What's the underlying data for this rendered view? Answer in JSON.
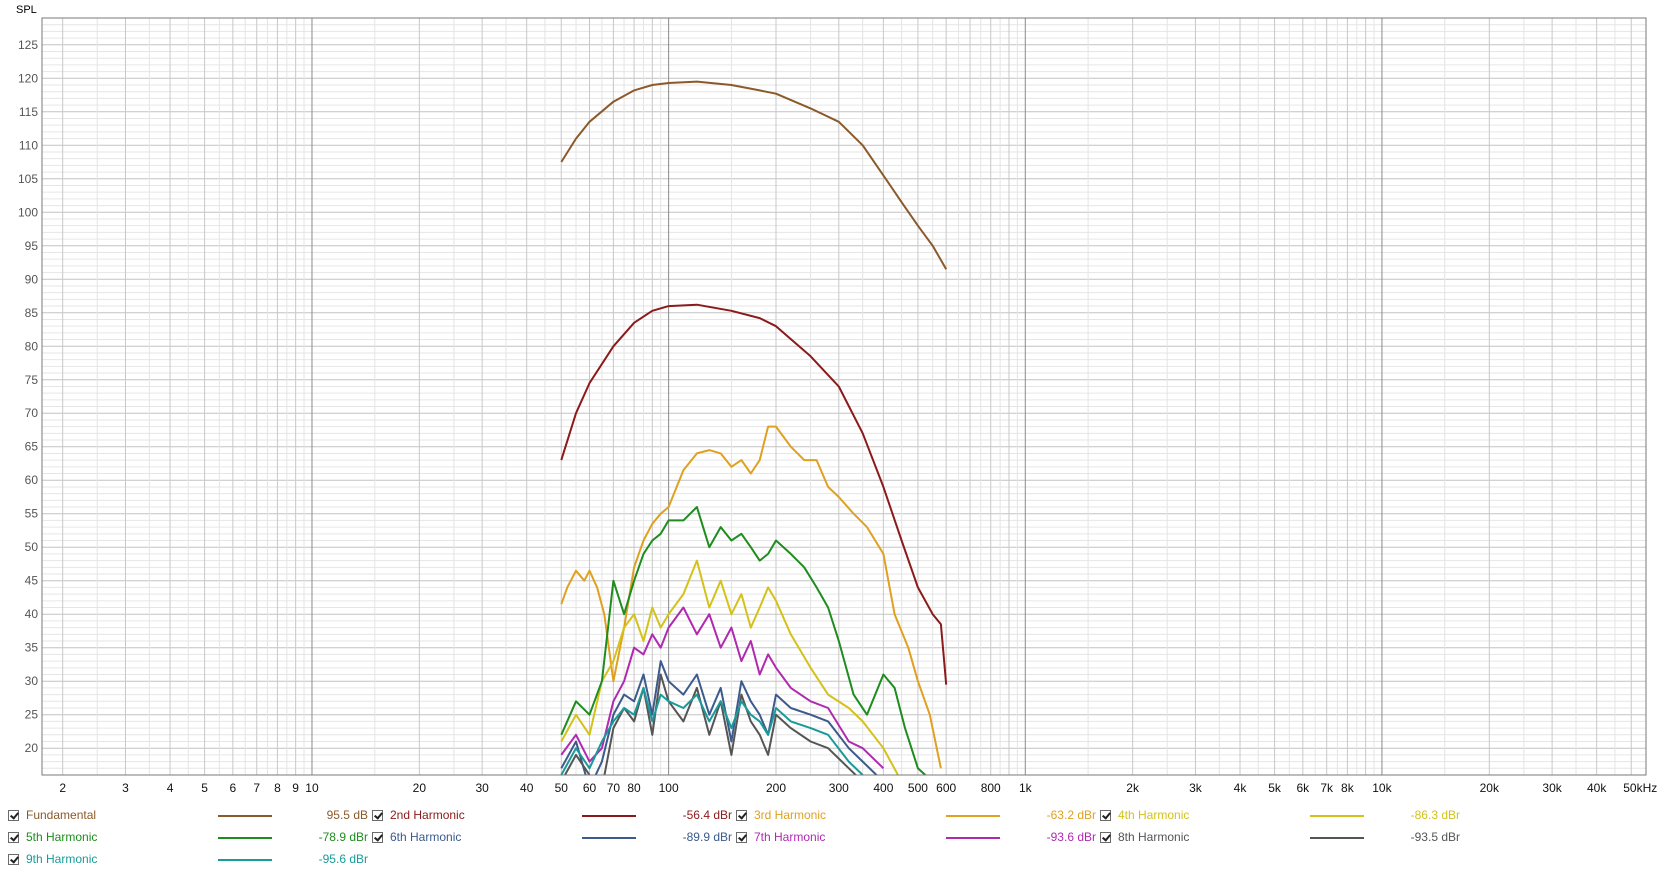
{
  "chart_data": {
    "type": "line",
    "title": "",
    "ylabel": "SPL",
    "xlabel": "",
    "x_scale": "log",
    "xlim": [
      1.75,
      55000
    ],
    "ylim": [
      16,
      129
    ],
    "grid": true,
    "legend_placement": "bottom",
    "y_ticks": [
      20,
      25,
      30,
      35,
      40,
      45,
      50,
      55,
      60,
      65,
      70,
      75,
      80,
      85,
      90,
      95,
      100,
      105,
      110,
      115,
      120,
      125
    ],
    "x_ticks": [
      {
        "v": 2,
        "label": "2"
      },
      {
        "v": 3,
        "label": "3"
      },
      {
        "v": 4,
        "label": "4"
      },
      {
        "v": 5,
        "label": "5"
      },
      {
        "v": 6,
        "label": "6"
      },
      {
        "v": 7,
        "label": "7"
      },
      {
        "v": 8,
        "label": "8"
      },
      {
        "v": 9,
        "label": "9"
      },
      {
        "v": 10,
        "label": "10"
      },
      {
        "v": 20,
        "label": "20"
      },
      {
        "v": 30,
        "label": "30"
      },
      {
        "v": 40,
        "label": "40"
      },
      {
        "v": 50,
        "label": "50"
      },
      {
        "v": 60,
        "label": "60"
      },
      {
        "v": 70,
        "label": "70"
      },
      {
        "v": 80,
        "label": "80"
      },
      {
        "v": 100,
        "label": "100"
      },
      {
        "v": 200,
        "label": "200"
      },
      {
        "v": 300,
        "label": "300"
      },
      {
        "v": 400,
        "label": "400"
      },
      {
        "v": 500,
        "label": "500"
      },
      {
        "v": 600,
        "label": "600"
      },
      {
        "v": 800,
        "label": "800"
      },
      {
        "v": 1000,
        "label": "1k"
      },
      {
        "v": 2000,
        "label": "2k"
      },
      {
        "v": 3000,
        "label": "3k"
      },
      {
        "v": 4000,
        "label": "4k"
      },
      {
        "v": 5000,
        "label": "5k"
      },
      {
        "v": 6000,
        "label": "6k"
      },
      {
        "v": 7000,
        "label": "7k"
      },
      {
        "v": 8000,
        "label": "8k"
      },
      {
        "v": 10000,
        "label": "10k"
      },
      {
        "v": 20000,
        "label": "20k"
      },
      {
        "v": 30000,
        "label": "30k"
      },
      {
        "v": 40000,
        "label": "40k"
      },
      {
        "v": 50000,
        "label": "50kHz"
      }
    ],
    "series": [
      {
        "name": "Fundamental",
        "legend_value": "95.5 dB",
        "color": "#8b5a2b",
        "x": [
          50,
          55,
          60,
          70,
          80,
          90,
          100,
          120,
          150,
          180,
          200,
          250,
          300,
          350,
          400,
          450,
          500,
          550,
          600
        ],
        "y": [
          107.5,
          111,
          113.5,
          116.5,
          118.2,
          119,
          119.3,
          119.5,
          119,
          118.2,
          117.7,
          115.5,
          113.5,
          110,
          105.5,
          101.5,
          98,
          95,
          91.5
        ]
      },
      {
        "name": "2nd Harmonic",
        "legend_value": "-56.4 dBr",
        "color": "#8b1a1a",
        "x": [
          50,
          55,
          60,
          70,
          80,
          90,
          100,
          120,
          150,
          180,
          200,
          250,
          300,
          350,
          400,
          450,
          500,
          550,
          580,
          600
        ],
        "y": [
          63,
          70,
          74.5,
          80,
          83.5,
          85.3,
          86,
          86.2,
          85.3,
          84.2,
          83,
          78.5,
          74,
          67,
          59,
          51,
          44,
          40,
          38.5,
          29.5
        ]
      },
      {
        "name": "3rd Harmonic",
        "legend_value": "-63.2 dBr",
        "color": "#e0a020",
        "x": [
          50,
          52,
          55,
          58,
          60,
          63,
          66,
          70,
          75,
          80,
          85,
          90,
          95,
          100,
          110,
          120,
          130,
          140,
          150,
          160,
          170,
          180,
          190,
          200,
          220,
          240,
          260,
          280,
          300,
          330,
          360,
          400,
          430,
          470,
          500,
          540,
          580
        ],
        "y": [
          41.5,
          44,
          46.5,
          45,
          46.5,
          44,
          40,
          30,
          38,
          47,
          51,
          53.5,
          55,
          56,
          61.5,
          64,
          64.5,
          64,
          62,
          63,
          61,
          63,
          68,
          68,
          65,
          63,
          63,
          59,
          57.5,
          55,
          53,
          49,
          40,
          35,
          30,
          25,
          17
        ]
      },
      {
        "name": "4th Harmonic",
        "legend_value": "-86.3 dBr",
        "color": "#d4c21a",
        "x": [
          50,
          55,
          60,
          65,
          70,
          75,
          80,
          85,
          90,
          95,
          100,
          110,
          120,
          130,
          140,
          150,
          160,
          170,
          180,
          190,
          200,
          220,
          250,
          280,
          320,
          350,
          400,
          450
        ],
        "y": [
          21,
          25,
          22,
          30,
          33,
          38,
          40,
          36,
          41,
          38,
          40,
          43,
          48,
          41,
          45,
          40,
          43,
          38,
          41,
          44,
          42,
          37,
          32,
          28,
          26,
          24,
          20,
          15
        ]
      },
      {
        "name": "5th Harmonic",
        "legend_value": "-78.9 dBr",
        "color": "#1e8c1e",
        "x": [
          50,
          55,
          60,
          65,
          70,
          75,
          80,
          85,
          90,
          95,
          100,
          110,
          120,
          130,
          140,
          150,
          160,
          170,
          180,
          190,
          200,
          220,
          240,
          260,
          280,
          300,
          330,
          360,
          400,
          430,
          460,
          500,
          550
        ],
        "y": [
          22,
          27,
          25,
          30,
          45,
          40,
          45,
          49,
          51,
          52,
          54,
          54,
          56,
          50,
          53,
          51,
          52,
          50,
          48,
          49,
          51,
          49,
          47,
          44,
          41,
          36,
          28,
          25,
          31,
          29,
          23,
          17,
          15
        ]
      },
      {
        "name": "6th Harmonic",
        "legend_value": "-89.9 dBr",
        "color": "#3c5a8c",
        "x": [
          50,
          55,
          60,
          65,
          70,
          75,
          80,
          85,
          90,
          95,
          100,
          110,
          120,
          130,
          140,
          150,
          160,
          170,
          180,
          190,
          200,
          220,
          250,
          280,
          320,
          350,
          400
        ],
        "y": [
          17,
          21,
          14,
          18,
          25,
          28,
          27,
          31,
          25,
          33,
          30,
          28,
          31,
          25,
          29,
          21,
          30,
          27,
          25,
          22,
          28,
          26,
          25,
          24,
          20,
          18,
          15
        ]
      },
      {
        "name": "7th Harmonic",
        "legend_value": "-93.6 dBr",
        "color": "#b02ab0",
        "x": [
          50,
          55,
          60,
          65,
          70,
          75,
          80,
          85,
          90,
          95,
          100,
          110,
          120,
          130,
          140,
          150,
          160,
          170,
          180,
          190,
          200,
          220,
          250,
          280,
          320,
          350,
          400
        ],
        "y": [
          19,
          22,
          18,
          20,
          27,
          30,
          35,
          34,
          37,
          35,
          38,
          41,
          37,
          40,
          35,
          38,
          33,
          36,
          31,
          34,
          32,
          29,
          27,
          26,
          21,
          20,
          17
        ]
      },
      {
        "name": "8th Harmonic",
        "legend_value": "-93.5 dBr",
        "color": "#555555",
        "x": [
          50,
          55,
          60,
          65,
          70,
          75,
          80,
          85,
          90,
          95,
          100,
          110,
          120,
          130,
          140,
          150,
          160,
          170,
          180,
          190,
          200,
          220,
          250,
          280,
          320,
          350
        ],
        "y": [
          15,
          19,
          16,
          14,
          23,
          26,
          24,
          29,
          22,
          31,
          27,
          24,
          29,
          22,
          27,
          19,
          28,
          24,
          22,
          19,
          25,
          23,
          21,
          20,
          17,
          15
        ]
      },
      {
        "name": "9th Harmonic",
        "legend_value": "-95.6 dBr",
        "color": "#1a9a9a",
        "x": [
          50,
          55,
          60,
          65,
          70,
          75,
          80,
          85,
          90,
          95,
          100,
          110,
          120,
          130,
          140,
          150,
          160,
          170,
          180,
          190,
          200,
          220,
          250,
          280,
          320,
          350
        ],
        "y": [
          16,
          20,
          17,
          21,
          24,
          26,
          25,
          29,
          24,
          28,
          27,
          26,
          28,
          24,
          27,
          23,
          27,
          25,
          24,
          22,
          26,
          24,
          23,
          22,
          18,
          16
        ]
      }
    ]
  }
}
